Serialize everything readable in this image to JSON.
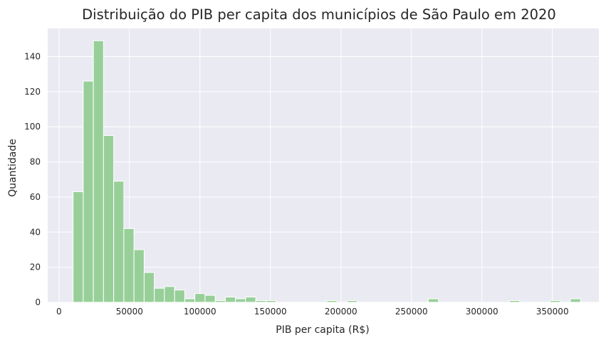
{
  "chart_data": {
    "type": "bar",
    "title": "Distribuição do PIB per capita dos municípios de São Paulo em 2020",
    "xlabel": "PIB per capita (R$)",
    "ylabel": "Quantidade",
    "xlim": [
      -8000,
      383000
    ],
    "ylim": [
      0,
      156
    ],
    "grid": true,
    "legend": "none",
    "bar_color": "#98cf99",
    "bar_edge_color": "#ffffff",
    "background_color": "#eaeaf2",
    "grid_color": "#ffffff",
    "bin_width": 7200,
    "bin_starts": [
      10000,
      17200,
      24400,
      31600,
      38800,
      46000,
      53200,
      60400,
      67600,
      74800,
      82000,
      89200,
      96400,
      103600,
      110800,
      118000,
      125200,
      132400,
      139600,
      146800,
      154000,
      161200,
      168400,
      175600,
      182800,
      190000,
      197200,
      204400,
      211600,
      218800,
      226000,
      233200,
      240400,
      247600,
      254800,
      262000,
      269200,
      276400,
      283600,
      290800,
      298000,
      305200,
      312400,
      319600,
      326800,
      334000,
      341200,
      348400,
      355600,
      362800
    ],
    "values": [
      63,
      126,
      149,
      95,
      69,
      42,
      30,
      17,
      8,
      9,
      7,
      2,
      5,
      4,
      1,
      3,
      2,
      3,
      1,
      1,
      0,
      0,
      0,
      0,
      0,
      1,
      0,
      1,
      0,
      0,
      0,
      0,
      0,
      0,
      0,
      2,
      0,
      0,
      0,
      0,
      0,
      0,
      0,
      1,
      0,
      0,
      0,
      1,
      0,
      2
    ],
    "xticks": [
      0,
      50000,
      100000,
      150000,
      200000,
      250000,
      300000,
      350000
    ],
    "xtick_labels": [
      "0",
      "50000",
      "100000",
      "150000",
      "200000",
      "250000",
      "300000",
      "350000"
    ],
    "yticks": [
      0,
      20,
      40,
      60,
      80,
      100,
      120,
      140
    ],
    "ytick_labels": [
      "0",
      "20",
      "40",
      "60",
      "80",
      "100",
      "120",
      "140"
    ]
  }
}
